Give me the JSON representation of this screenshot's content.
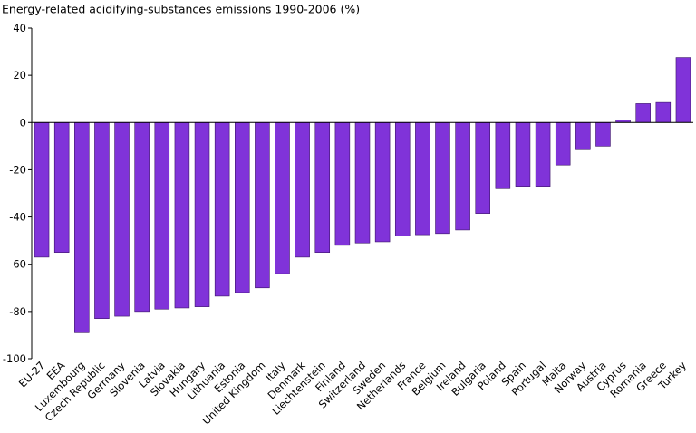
{
  "chart_data": {
    "type": "bar",
    "title": "Energy-related acidifying-substances emissions 1990-2006 (%)",
    "categories": [
      "EU-27",
      "EEA",
      "Luxembourg",
      "Czech Republic",
      "Germany",
      "Slovenia",
      "Latvia",
      "Slovakia",
      "Hungary",
      "Lithuania",
      "Estonia",
      "United Kingdom",
      "Italy",
      "Denmark",
      "Liechtenstein",
      "Finland",
      "Switzerland",
      "Sweden",
      "Netherlands",
      "France",
      "Belgium",
      "Ireland",
      "Bulgaria",
      "Poland",
      "Spain",
      "Portugal",
      "Malta",
      "Norway",
      "Austria",
      "Cyprus",
      "Romania",
      "Greece",
      "Turkey"
    ],
    "values": [
      -57,
      -55,
      -89,
      -83,
      -82,
      -80,
      -79,
      -78.5,
      -78,
      -73.5,
      -72,
      -70,
      -64,
      -57,
      -55,
      -52,
      -51,
      -50.5,
      -48,
      -47.5,
      -47,
      -45.5,
      -38.5,
      -28,
      -27,
      -27,
      -18,
      -11.5,
      -10,
      1,
      8,
      8.5,
      27.5
    ],
    "color": "#8033d9",
    "ylim": [
      -100,
      40
    ],
    "yticks": [
      -100,
      -80,
      -60,
      -40,
      -20,
      0,
      20,
      40
    ],
    "grid": false
  }
}
